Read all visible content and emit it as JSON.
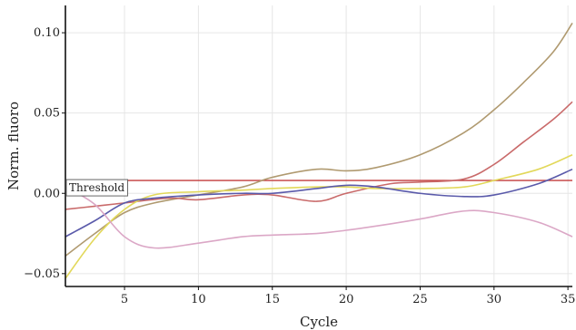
{
  "chart_data": {
    "type": "line",
    "xlabel": "Cycle",
    "ylabel": "Norm. fluoro",
    "xlim": [
      1,
      35.3
    ],
    "ylim": [
      -0.058,
      0.117
    ],
    "x_ticks": [
      5,
      10,
      15,
      20,
      25,
      30,
      35
    ],
    "x_tick_labels": [
      "5",
      "10",
      "15",
      "20",
      "25",
      "30",
      "35"
    ],
    "y_ticks": [
      -0.05,
      0.0,
      0.05,
      0.1
    ],
    "y_tick_labels": [
      "−0.05",
      "0.00",
      "0.05",
      "0.10"
    ],
    "grid": true,
    "threshold": {
      "label": "Threshold",
      "y": 0.008,
      "color": "#c23b3b"
    },
    "series": [
      {
        "color": "#b09a70",
        "points": [
          [
            1,
            -0.039
          ],
          [
            3,
            -0.025
          ],
          [
            5,
            -0.012
          ],
          [
            7,
            -0.006
          ],
          [
            10,
            -0.001
          ],
          [
            13,
            0.004
          ],
          [
            15,
            0.01
          ],
          [
            18,
            0.015
          ],
          [
            20,
            0.014
          ],
          [
            22,
            0.016
          ],
          [
            25,
            0.024
          ],
          [
            28,
            0.038
          ],
          [
            30,
            0.052
          ],
          [
            32,
            0.069
          ],
          [
            34,
            0.088
          ],
          [
            35.3,
            0.106
          ]
        ]
      },
      {
        "color": "#c96a6a",
        "points": [
          [
            1,
            -0.01
          ],
          [
            3,
            -0.008
          ],
          [
            5,
            -0.006
          ],
          [
            8,
            -0.003
          ],
          [
            10,
            -0.004
          ],
          [
            13,
            -0.001
          ],
          [
            15,
            -0.001
          ],
          [
            18,
            -0.005
          ],
          [
            20,
            0.0
          ],
          [
            23,
            0.006
          ],
          [
            25,
            0.007
          ],
          [
            28,
            0.009
          ],
          [
            30,
            0.018
          ],
          [
            32,
            0.032
          ],
          [
            34,
            0.046
          ],
          [
            35.3,
            0.057
          ]
        ]
      },
      {
        "color": "#e2d85a",
        "points": [
          [
            1,
            -0.053
          ],
          [
            3,
            -0.028
          ],
          [
            5,
            -0.01
          ],
          [
            7,
            -0.001
          ],
          [
            10,
            0.001
          ],
          [
            13,
            0.002
          ],
          [
            15,
            0.003
          ],
          [
            18,
            0.004
          ],
          [
            20,
            0.004
          ],
          [
            22,
            0.003
          ],
          [
            25,
            0.003
          ],
          [
            28,
            0.004
          ],
          [
            30,
            0.008
          ],
          [
            33,
            0.015
          ],
          [
            35.3,
            0.024
          ]
        ]
      },
      {
        "color": "#5a5aaa",
        "points": [
          [
            1,
            -0.027
          ],
          [
            3,
            -0.017
          ],
          [
            5,
            -0.006
          ],
          [
            7,
            -0.003
          ],
          [
            10,
            -0.001
          ],
          [
            13,
            0.0
          ],
          [
            15,
            0.0
          ],
          [
            18,
            0.003
          ],
          [
            20,
            0.005
          ],
          [
            22,
            0.004
          ],
          [
            25,
            0.0
          ],
          [
            28,
            -0.002
          ],
          [
            30,
            -0.001
          ],
          [
            33,
            0.006
          ],
          [
            35.3,
            0.015
          ]
        ]
      },
      {
        "color": "#dba7c6",
        "points": [
          [
            1,
            0.004
          ],
          [
            3,
            -0.007
          ],
          [
            5,
            -0.027
          ],
          [
            7,
            -0.034
          ],
          [
            10,
            -0.031
          ],
          [
            13,
            -0.027
          ],
          [
            15,
            -0.026
          ],
          [
            18,
            -0.025
          ],
          [
            20,
            -0.023
          ],
          [
            23,
            -0.019
          ],
          [
            25,
            -0.016
          ],
          [
            28,
            -0.011
          ],
          [
            30,
            -0.012
          ],
          [
            33,
            -0.018
          ],
          [
            35.3,
            -0.027
          ]
        ]
      }
    ]
  }
}
